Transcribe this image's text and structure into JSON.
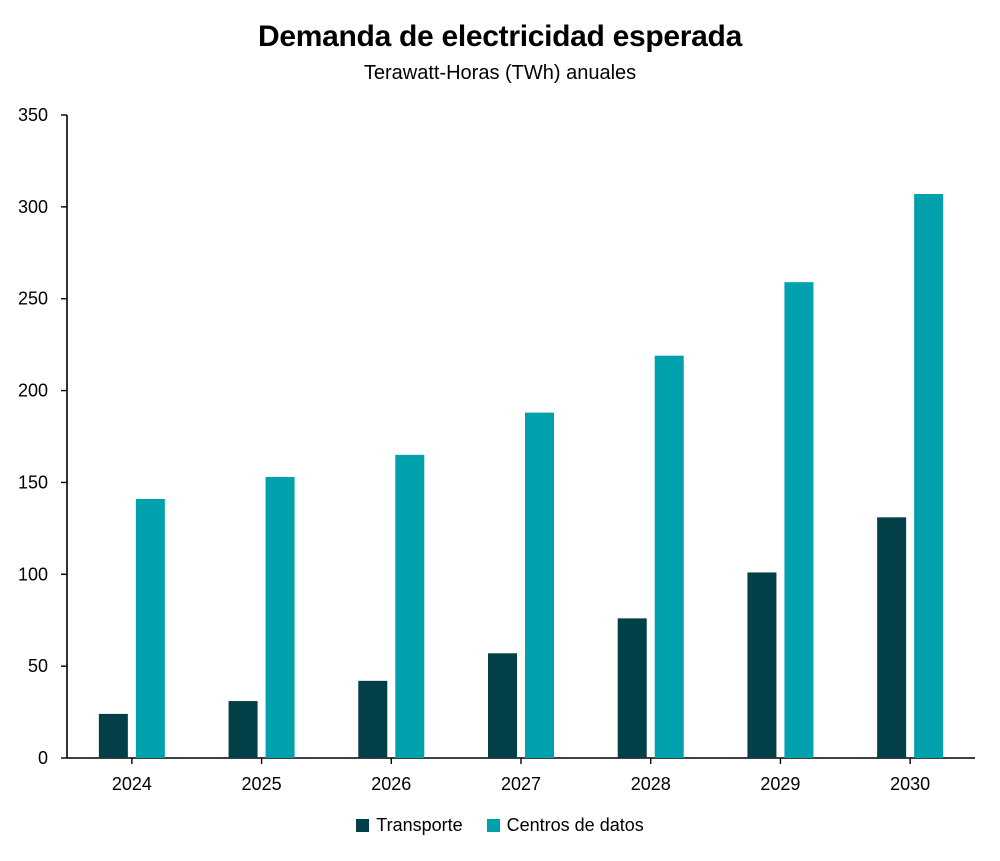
{
  "colors": {
    "transporte": "#023f47",
    "centros": "#00a0ad",
    "axis": "#000000"
  },
  "chart_data": {
    "type": "bar",
    "title": "Demanda de electricidad esperada",
    "subtitle": "Terawatt-Horas (TWh) anuales",
    "categories": [
      "2024",
      "2025",
      "2026",
      "2027",
      "2028",
      "2029",
      "2030"
    ],
    "series": [
      {
        "name": "Transporte",
        "values": [
          24,
          31,
          42,
          57,
          76,
          101,
          131
        ]
      },
      {
        "name": "Centros de datos",
        "values": [
          141,
          153,
          165,
          188,
          219,
          259,
          307
        ]
      }
    ],
    "ylim": [
      0,
      350
    ],
    "yticks": [
      "0",
      "50",
      "100",
      "150",
      "200",
      "250",
      "300",
      "350"
    ],
    "grid": false,
    "legend": "bottom"
  }
}
